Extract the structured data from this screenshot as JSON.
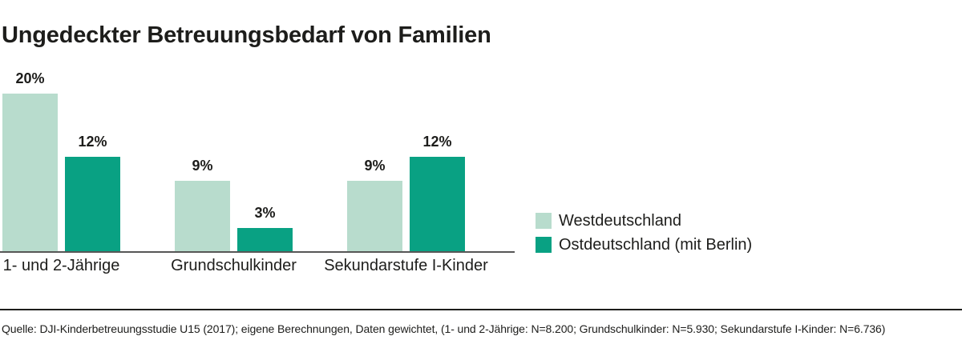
{
  "title": "Ungedeckter Betreuungsbedarf von Familien",
  "chart_data": {
    "type": "bar",
    "title": "Ungedeckter Betreuungsbedarf von Familien",
    "categories": [
      "1- und 2-Jährige",
      "Grundschulkinder",
      "Sekundarstufe I-Kinder"
    ],
    "series": [
      {
        "name": "Westdeutschland",
        "color": "#b8dccd",
        "values": [
          20,
          9,
          9
        ],
        "value_labels": [
          "20%",
          "9%",
          "9%"
        ]
      },
      {
        "name": "Ostdeutschland (mit Berlin)",
        "color": "#09a183",
        "values": [
          12,
          3,
          12
        ],
        "value_labels": [
          "12%",
          "3%",
          "12%"
        ]
      }
    ],
    "unit": "%",
    "ylim": [
      0,
      20
    ],
    "grid": false,
    "legend_position": "right-middle",
    "value_labels_shown": true
  },
  "footer": {
    "source": "Quelle: DJI-Kinderbetreuungsstudie U15 (2017); eigene Berechnungen, Daten gewichtet, (1- und 2-Jährige: N=8.200; Grundschulkinder: N=5.930; Sekundarstufe I-Kinder: N=6.736)"
  },
  "colors": {
    "west_series": "#b8dccd",
    "ost_series": "#09a183",
    "text": "#1d1d1b",
    "axis_line": "#575756",
    "divider": "#1d1d1b",
    "background": "#ffffff"
  }
}
